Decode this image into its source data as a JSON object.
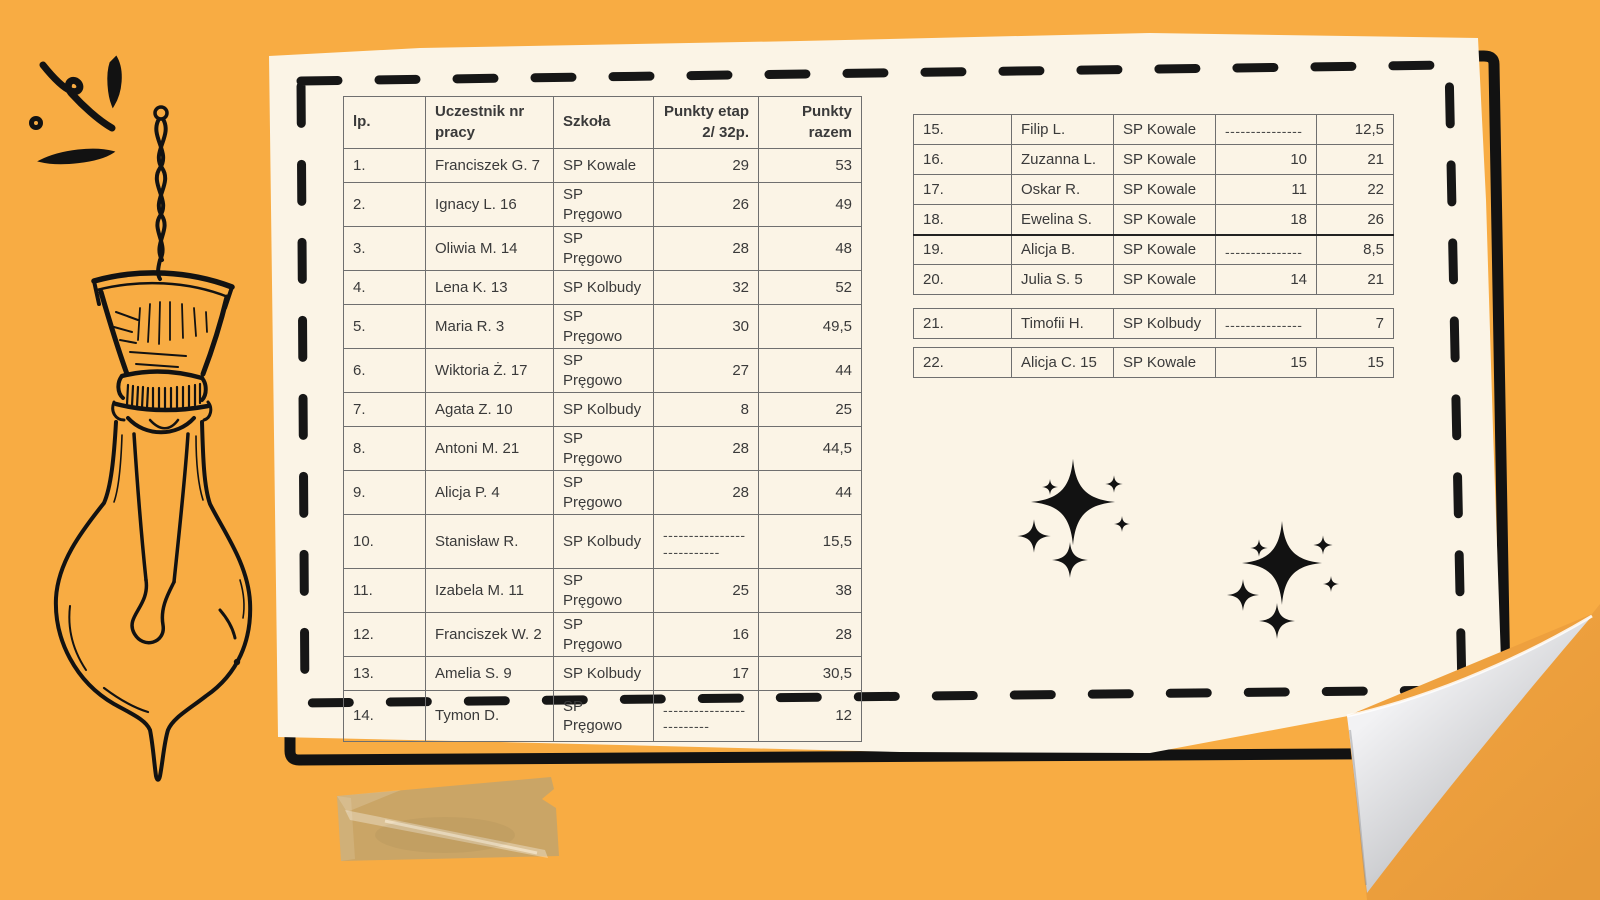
{
  "theme": {
    "background_orange": "#F8AC43",
    "paper_cream": "#FBF4E6",
    "ink_black": "#151515",
    "table_grid_gray": "#6f6f6f",
    "table_text_gray": "#3a3a3a",
    "curl_shadow_orange": "#EC9E3C",
    "tape_tan": "#C8A468"
  },
  "results": {
    "left": {
      "headers": [
        "lp.",
        "Uczestnik nr pracy",
        "Szkoła",
        "Punkty etap 2/ 32p.",
        "Punkty razem"
      ],
      "rows": [
        [
          "1.",
          "Franciszek G. 7",
          "SP Kowale",
          "29",
          "53"
        ],
        [
          "2.",
          "Ignacy L. 16",
          "SP Pręgowo",
          "26",
          "49"
        ],
        [
          "3.",
          "Oliwia M. 14",
          "SP Pręgowo",
          "28",
          "48"
        ],
        [
          "4.",
          "Lena K. 13",
          "SP Kolbudy",
          "32",
          "52"
        ],
        [
          "5.",
          "Maria R. 3",
          "SP Pręgowo",
          "30",
          "49,5"
        ],
        [
          "6.",
          "Wiktoria Ż. 17",
          "SP Pręgowo",
          "27",
          "44"
        ],
        [
          "7.",
          "Agata Z. 10",
          "SP Kolbudy",
          "8",
          "25"
        ],
        [
          "8.",
          "Antoni M. 21",
          "SP Pręgowo",
          "28",
          "44,5"
        ],
        [
          "9.",
          "Alicja P. 4",
          "SP Pręgowo",
          "28",
          "44"
        ],
        [
          "10.",
          "Stanisław R.",
          "SP Kolbudy",
          "---------------------------",
          "15,5"
        ],
        [
          "11.",
          "Izabela M. 11",
          "SP Pręgowo",
          "25",
          "38"
        ],
        [
          "12.",
          "Franciszek W. 2",
          "SP Pręgowo",
          "16",
          "28"
        ],
        [
          "13.",
          "Amelia S. 9",
          "SP Kolbudy",
          "17",
          "30,5"
        ],
        [
          "14.",
          "Tymon D.",
          "SP Pręgowo",
          "-------------------------",
          "12"
        ]
      ]
    },
    "right_main": {
      "rows": [
        [
          "15.",
          "Filip L.",
          "SP Kowale",
          "---------------",
          "12,5"
        ],
        [
          "16.",
          "Zuzanna L.",
          "SP Kowale",
          "10",
          "21"
        ],
        [
          "17.",
          "Oskar R.",
          "SP Kowale",
          "11",
          "22"
        ],
        [
          "18.",
          "Ewelina S.",
          "SP Kowale",
          "18",
          "26"
        ],
        [
          "19.",
          "Alicja B.",
          "SP Kowale",
          "---------------",
          "8,5"
        ],
        [
          "20.",
          "Julia S. 5",
          "SP Kowale",
          "14",
          "21"
        ]
      ]
    },
    "right_row21": {
      "rows": [
        [
          "21.",
          "Timofii H.",
          "SP Kolbudy",
          "---------------",
          "7"
        ]
      ]
    },
    "right_row22": {
      "rows": [
        [
          "22.",
          "Alicja C. 15",
          "SP Kowale",
          "15",
          "15"
        ]
      ]
    }
  }
}
